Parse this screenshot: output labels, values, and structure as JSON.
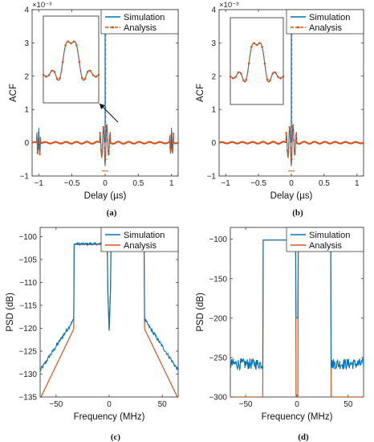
{
  "colors": {
    "simulation": "#0072bd",
    "analysis": "#d95319"
  },
  "chart_data": [
    {
      "id": "a",
      "type": "line",
      "caption": "(a)",
      "xlabel": "Delay (µs)",
      "ylabel": "ACF",
      "exponent_label": "×10⁻³",
      "xlim": [
        -1.1,
        1.1
      ],
      "ylim": [
        -1,
        4
      ],
      "xticks": [
        -1,
        -0.5,
        0,
        0.5,
        1
      ],
      "xtick_labels": [
        "−1",
        "−0.5",
        "0",
        "0.5",
        "1"
      ],
      "yticks": [
        -1,
        0,
        1,
        2,
        3,
        4
      ],
      "ytick_labels": [
        "−1",
        "0",
        "1",
        "2",
        "3",
        "4"
      ],
      "legend": [
        "Simulation",
        "Analysis"
      ],
      "legend_placement": "top-right",
      "side_lobes": true,
      "inset": true
    },
    {
      "id": "b",
      "type": "line",
      "caption": "(b)",
      "xlabel": "Delay (µs)",
      "ylabel": "ACF",
      "exponent_label": "×10⁻³",
      "xlim": [
        -1.1,
        1.1
      ],
      "ylim": [
        -1,
        4
      ],
      "xticks": [
        -1,
        -0.5,
        0,
        0.5,
        1
      ],
      "xtick_labels": [
        "−1",
        "−0.5",
        "0",
        "0.5",
        "1"
      ],
      "yticks": [
        -1,
        0,
        1,
        2,
        3,
        4
      ],
      "ytick_labels": [
        "−1",
        "0",
        "1",
        "2",
        "3",
        "4"
      ],
      "legend": [
        "Simulation",
        "Analysis"
      ],
      "legend_placement": "top-right",
      "side_lobes": false,
      "inset": true
    },
    {
      "id": "c",
      "type": "line",
      "caption": "(c)",
      "xlabel": "Frequency (MHz)",
      "ylabel": "PSD (dB)",
      "xlim": [
        -65,
        65
      ],
      "ylim": [
        -135,
        -98
      ],
      "xticks": [
        -50,
        0,
        50
      ],
      "xtick_labels": [
        "−50",
        "0",
        "50"
      ],
      "yticks": [
        -135,
        -130,
        -125,
        -120,
        -115,
        -110,
        -105,
        -100
      ],
      "ytick_labels": [
        "−135",
        "−130",
        "−125",
        "−120",
        "−115",
        "−110",
        "−105",
        "−100"
      ],
      "legend": [
        "Simulation",
        "Analysis"
      ],
      "legend_placement": "top-right"
    },
    {
      "id": "d",
      "type": "line",
      "caption": "(d)",
      "xlabel": "Frequency (MHz)",
      "ylabel": "PSD (dB)",
      "xlim": [
        -65,
        65
      ],
      "ylim": [
        -300,
        -85
      ],
      "xticks": [
        -50,
        0,
        50
      ],
      "xtick_labels": [
        "−50",
        "0",
        "50"
      ],
      "yticks": [
        -300,
        -250,
        -200,
        -150,
        -100
      ],
      "ytick_labels": [
        "−300",
        "−250",
        "−200",
        "−150",
        "−100"
      ],
      "legend": [
        "Simulation",
        "Analysis"
      ],
      "legend_placement": "top-right"
    }
  ]
}
